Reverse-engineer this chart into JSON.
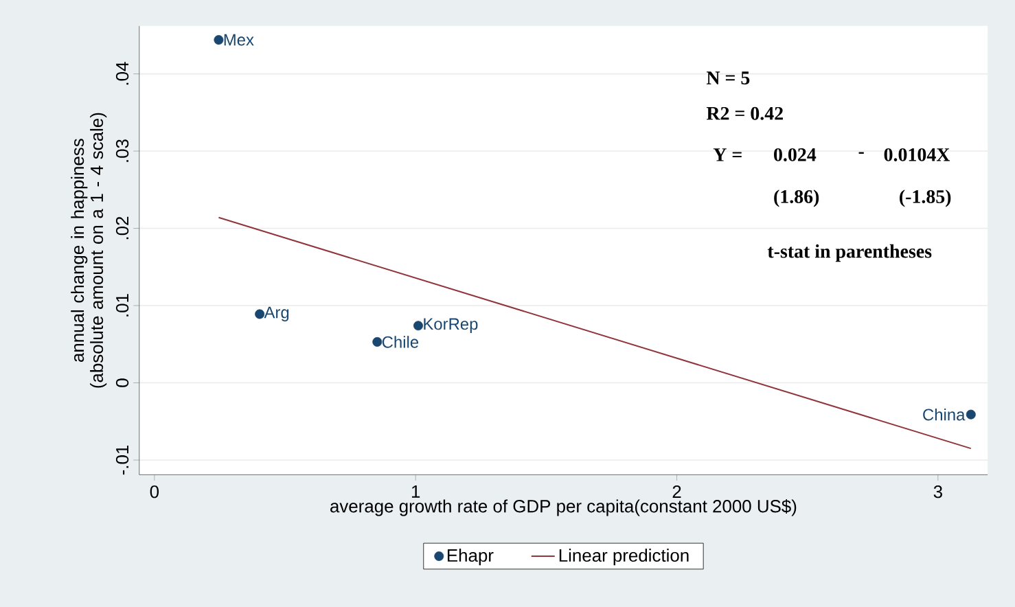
{
  "chart_data": {
    "type": "scatter",
    "xlabel": "average growth rate of GDP per capita(constant 2000 US$)",
    "ylabel": "annual change in happiness (absolute amount on a 1 - 4 scale)",
    "xlim": [
      -0.058,
      3.19
    ],
    "ylim": [
      -0.0119,
      0.0462
    ],
    "xticks": [
      0,
      1,
      2,
      3
    ],
    "yticks": [
      {
        "value": -0.01,
        "label": "-.01"
      },
      {
        "value": 0,
        "label": "0"
      },
      {
        "value": 0.01,
        "label": ".01"
      },
      {
        "value": 0.02,
        "label": ".02"
      },
      {
        "value": 0.03,
        "label": ".03"
      },
      {
        "value": 0.04,
        "label": ".04"
      }
    ],
    "grid": "y",
    "legend": "bottom",
    "series": [
      {
        "name": "Ehapr",
        "marker": "circle",
        "color": "#1a476f",
        "x": [
          0.246,
          0.403,
          0.853,
          1.01,
          3.126
        ],
        "values": [
          0.0444,
          0.0089,
          0.0053,
          0.0074,
          -0.0041
        ]
      },
      {
        "name": "Linear prediction",
        "type": "line",
        "marker": "none",
        "color": "#90353b",
        "x": [
          0.246,
          3.126
        ],
        "values": [
          0.0214,
          -0.0085
        ]
      }
    ],
    "annotations": [
      {
        "text": "Mex",
        "x": 0.246,
        "y": 0.0444
      },
      {
        "text": "Arg",
        "x": 0.403,
        "y": 0.0089
      },
      {
        "text": "Chile",
        "x": 0.853,
        "y": 0.0053
      },
      {
        "text": "KorRep",
        "x": 1.01,
        "y": 0.0074
      },
      {
        "text": "China",
        "x": 3.126,
        "y": -0.0041
      },
      "N = 5",
      "R2 = 0.42",
      "Y =",
      "0.024",
      "-",
      "0.0104X",
      "(1.86)",
      "(-1.85)",
      "t-stat in parentheses"
    ]
  }
}
